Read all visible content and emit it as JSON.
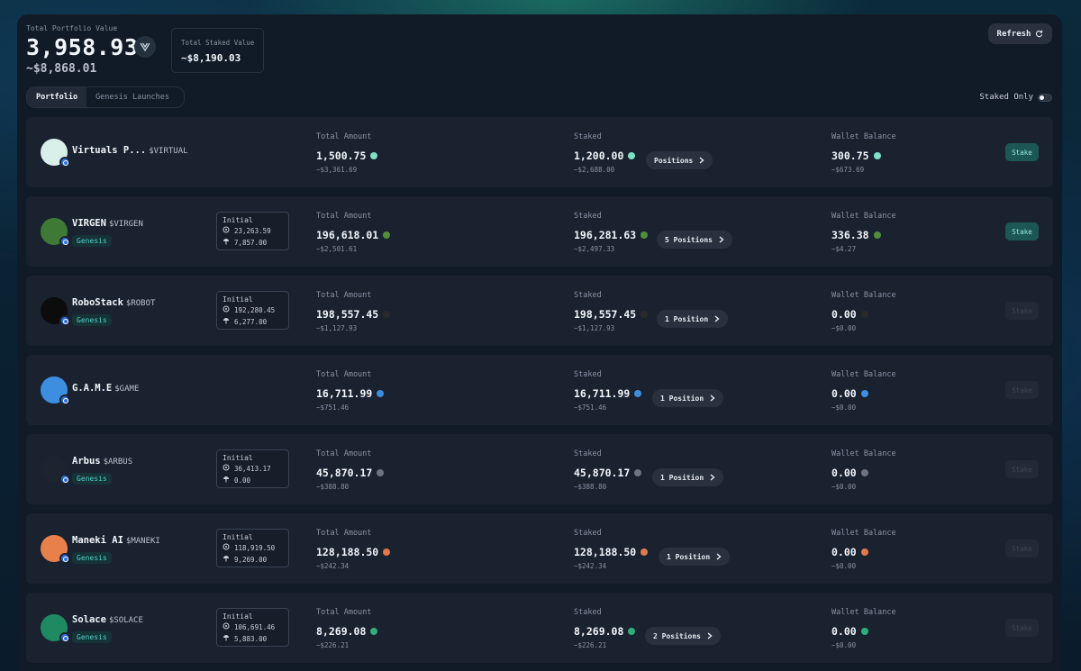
{
  "header": {
    "total_portfolio_label": "Total Portfolio Value",
    "total_portfolio_value": "3,958.93",
    "total_portfolio_usd": "~$8,868.01",
    "total_staked_label": "Total Staked Value",
    "total_staked_value": "~$8,190.03",
    "refresh_label": "Refresh"
  },
  "tabs": [
    {
      "label": "Portfolio",
      "active": true
    },
    {
      "label": "Genesis Launches",
      "active": false
    }
  ],
  "filter": {
    "staked_only_label": "Staked Only",
    "staked_only_on": false
  },
  "columns": {
    "total": "Total Amount",
    "staked": "Staked",
    "wallet": "Wallet Balance"
  },
  "initial_label": "Initial",
  "stake_label": "Stake",
  "tokens": [
    {
      "name": "Virtuals P...",
      "ticker": "$VIRTUAL",
      "genesis": null,
      "initial": null,
      "total": "1,500.75",
      "total_usd": "~$3,361.69",
      "staked": "1,200.00",
      "staked_usd": "~$2,688.00",
      "positions": "Positions",
      "wallet": "300.75",
      "wallet_usd": "~$673.69",
      "token_color": "#7fe0c4",
      "avatar_color": "#d9f0ea",
      "stake_enabled": true
    },
    {
      "name": "VIRGEN",
      "ticker": "$VIRGEN",
      "genesis": "Genesis",
      "initial": [
        "23,263.59",
        "7,857.00"
      ],
      "total": "196,618.01",
      "total_usd": "~$2,501.61",
      "staked": "196,281.63",
      "staked_usd": "~$2,497.33",
      "positions": "5 Positions",
      "wallet": "336.38",
      "wallet_usd": "~$4.27",
      "token_color": "#4f8f3a",
      "avatar_color": "#3e7a36",
      "stake_enabled": true
    },
    {
      "name": "RoboStack",
      "ticker": "$ROBOT",
      "genesis": "Genesis",
      "initial": [
        "192,280.45",
        "6,277.00"
      ],
      "total": "198,557.45",
      "total_usd": "~$1,127.93",
      "staked": "198,557.45",
      "staked_usd": "~$1,127.93",
      "positions": "1 Position",
      "wallet": "0.00",
      "wallet_usd": "~$0.00",
      "token_color": "#2a2a2a",
      "avatar_color": "#0c0c0c",
      "stake_enabled": false
    },
    {
      "name": "G.A.M.E",
      "ticker": "$GAME",
      "genesis": null,
      "initial": null,
      "total": "16,711.99",
      "total_usd": "~$751.46",
      "staked": "16,711.99",
      "staked_usd": "~$751.46",
      "positions": "1 Position",
      "wallet": "0.00",
      "wallet_usd": "~$0.00",
      "token_color": "#3d8ee0",
      "avatar_color": "#3d8ee0",
      "stake_enabled": false
    },
    {
      "name": "Arbus",
      "ticker": "$ARBUS",
      "genesis": "Genesis",
      "initial": [
        "36,413.17",
        "0.00"
      ],
      "total": "45,870.17",
      "total_usd": "~$388.80",
      "staked": "45,870.17",
      "staked_usd": "~$388.80",
      "positions": "1 Position",
      "wallet": "0.00",
      "wallet_usd": "~$0.00",
      "token_color": "#6b7480",
      "avatar_color": "#1d2430",
      "stake_enabled": false
    },
    {
      "name": "Maneki AI",
      "ticker": "$MANEKI",
      "genesis": "Genesis",
      "initial": [
        "118,919.50",
        "9,269.00"
      ],
      "total": "128,188.50",
      "total_usd": "~$242.34",
      "staked": "128,188.50",
      "staked_usd": "~$242.34",
      "positions": "1 Position",
      "wallet": "0.00",
      "wallet_usd": "~$0.00",
      "token_color": "#e07a4a",
      "avatar_color": "#e8804c",
      "stake_enabled": false
    },
    {
      "name": "Solace",
      "ticker": "$SOLACE",
      "genesis": "Genesis",
      "initial": [
        "106,691.46",
        "5,883.00"
      ],
      "total": "8,269.08",
      "total_usd": "~$226.21",
      "staked": "8,269.08",
      "staked_usd": "~$226.21",
      "positions": "2 Positions",
      "wallet": "0.00",
      "wallet_usd": "~$0.00",
      "token_color": "#2fae7a",
      "avatar_color": "#1f8a62",
      "stake_enabled": false
    }
  ]
}
